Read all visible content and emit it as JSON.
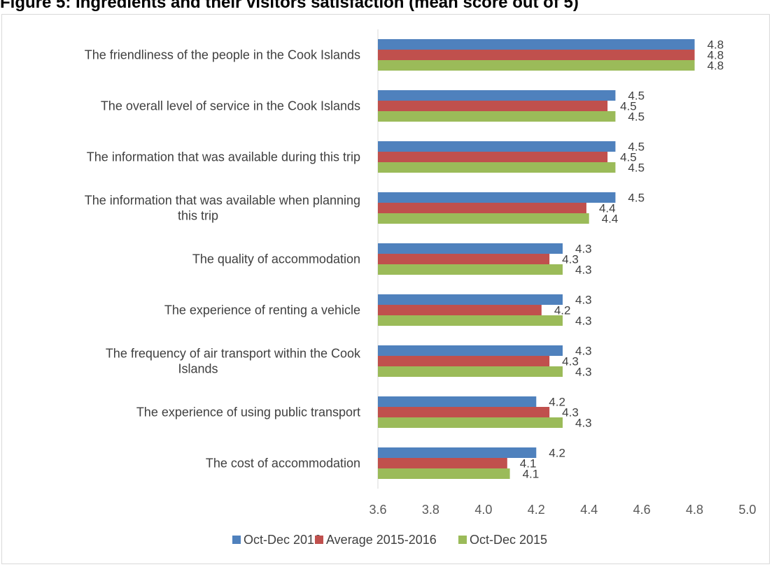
{
  "title": "Figure 5: Ingredients and their visitors satisfaction (mean score out of 5)",
  "chart_data": {
    "type": "bar",
    "orientation": "horizontal",
    "title": "",
    "xlabel": "",
    "ylabel": "",
    "xlim": [
      3.6,
      5.0
    ],
    "x_ticks": [
      "3.6",
      "3.8",
      "4.0",
      "4.2",
      "4.4",
      "4.6",
      "4.8",
      "5.0"
    ],
    "grid": false,
    "legend_position": "bottom",
    "categories": [
      [
        "The friendliness of the people in the Cook Islands"
      ],
      [
        "The overall level of service in the Cook Islands"
      ],
      [
        "The information that was available during this trip"
      ],
      [
        "The information that was available when planning",
        "this trip"
      ],
      [
        "The quality of accommodation"
      ],
      [
        "The experience of renting a vehicle"
      ],
      [
        "The frequency of air transport within the Cook",
        "Islands"
      ],
      [
        "The experience of using public transport"
      ],
      [
        "The cost of accommodation"
      ]
    ],
    "series": [
      {
        "name": "Oct-Dec 2016",
        "color": "#4f81bd",
        "values": [
          4.8,
          4.5,
          4.5,
          4.5,
          4.3,
          4.3,
          4.3,
          4.2,
          4.2
        ],
        "labels": [
          "4.8",
          "4.5",
          "4.5",
          "4.5",
          "4.3",
          "4.3",
          "4.3",
          "4.2",
          "4.2"
        ]
      },
      {
        "name": "Average 2015-2016",
        "color": "#c0504d",
        "values": [
          4.8,
          4.47,
          4.47,
          4.39,
          4.25,
          4.22,
          4.25,
          4.25,
          4.09
        ],
        "labels": [
          "4.8",
          "4.5",
          "4.5",
          "4.4",
          "4.3",
          "4.2",
          "4.3",
          "4.3",
          "4.1"
        ]
      },
      {
        "name": "Oct-Dec 2015",
        "color": "#9bbb59",
        "values": [
          4.8,
          4.5,
          4.5,
          4.4,
          4.3,
          4.3,
          4.3,
          4.3,
          4.1
        ],
        "labels": [
          "4.8",
          "4.5",
          "4.5",
          "4.4",
          "4.3",
          "4.3",
          "4.3",
          "4.3",
          "4.1"
        ]
      }
    ]
  }
}
